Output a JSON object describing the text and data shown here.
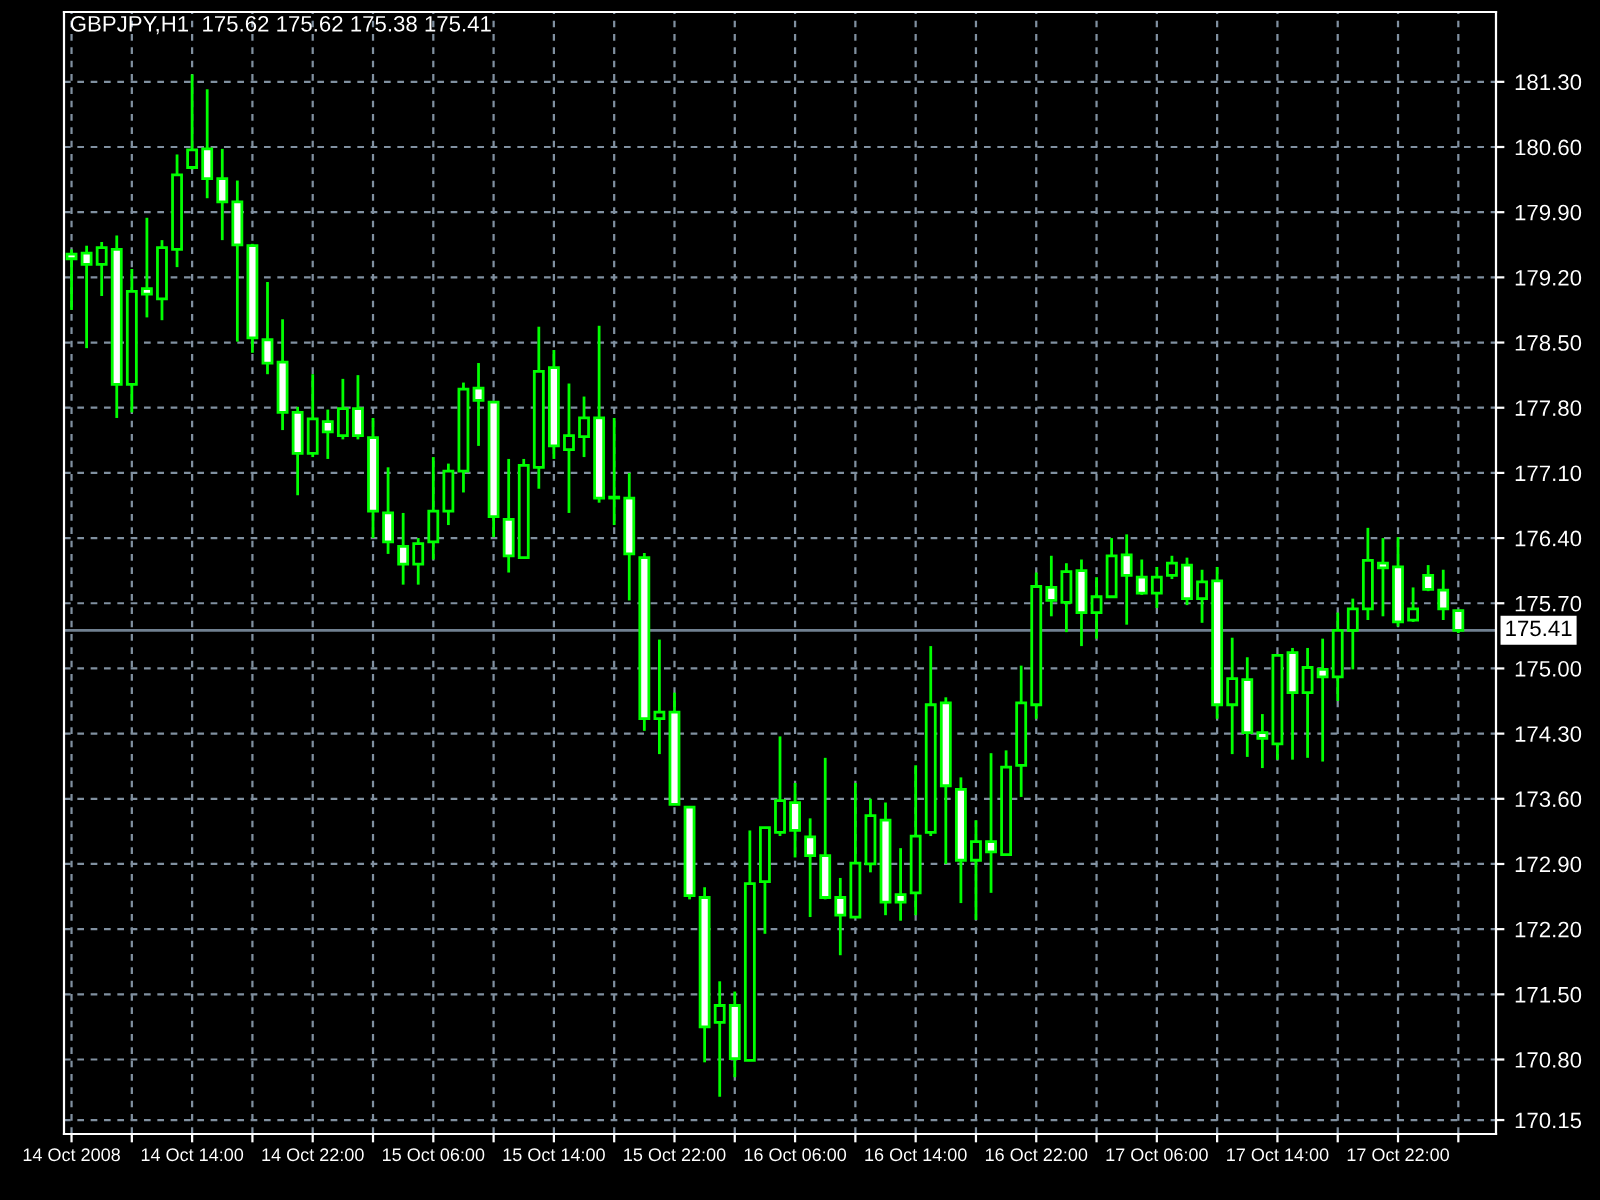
{
  "chart_data": {
    "type": "candlestick",
    "title": "GBPJPY,H1  175.62 175.62 175.38 175.41",
    "color": "#00ff00",
    "x": [
      "2008-10-14T06:00",
      "2008-10-14T07:00",
      "2008-10-14T08:00",
      "2008-10-14T09:00",
      "2008-10-14T10:00",
      "2008-10-14T11:00",
      "2008-10-14T12:00",
      "2008-10-14T13:00",
      "2008-10-14T14:00",
      "2008-10-14T15:00",
      "2008-10-14T16:00",
      "2008-10-14T17:00",
      "2008-10-14T18:00",
      "2008-10-14T19:00",
      "2008-10-14T20:00",
      "2008-10-14T21:00",
      "2008-10-14T22:00",
      "2008-10-14T23:00",
      "2008-10-15T00:00",
      "2008-10-15T01:00",
      "2008-10-15T02:00",
      "2008-10-15T03:00",
      "2008-10-15T04:00",
      "2008-10-15T05:00",
      "2008-10-15T06:00",
      "2008-10-15T07:00",
      "2008-10-15T08:00",
      "2008-10-15T09:00",
      "2008-10-15T10:00",
      "2008-10-15T11:00",
      "2008-10-15T12:00",
      "2008-10-15T13:00",
      "2008-10-15T14:00",
      "2008-10-15T15:00",
      "2008-10-15T16:00",
      "2008-10-15T17:00",
      "2008-10-15T18:00",
      "2008-10-15T19:00",
      "2008-10-15T20:00",
      "2008-10-15T21:00",
      "2008-10-15T22:00",
      "2008-10-15T23:00",
      "2008-10-16T00:00",
      "2008-10-16T01:00",
      "2008-10-16T02:00",
      "2008-10-16T03:00",
      "2008-10-16T04:00",
      "2008-10-16T05:00",
      "2008-10-16T06:00",
      "2008-10-16T07:00",
      "2008-10-16T08:00",
      "2008-10-16T09:00",
      "2008-10-16T10:00",
      "2008-10-16T11:00",
      "2008-10-16T12:00",
      "2008-10-16T13:00",
      "2008-10-16T14:00",
      "2008-10-16T15:00",
      "2008-10-16T16:00",
      "2008-10-16T17:00",
      "2008-10-16T18:00",
      "2008-10-16T19:00",
      "2008-10-16T20:00",
      "2008-10-16T21:00",
      "2008-10-16T22:00",
      "2008-10-16T23:00",
      "2008-10-17T00:00",
      "2008-10-17T01:00",
      "2008-10-17T02:00",
      "2008-10-17T03:00",
      "2008-10-17T04:00",
      "2008-10-17T05:00",
      "2008-10-17T06:00",
      "2008-10-17T07:00",
      "2008-10-17T08:00",
      "2008-10-17T09:00",
      "2008-10-17T10:00",
      "2008-10-17T11:00",
      "2008-10-17T12:00",
      "2008-10-17T13:00",
      "2008-10-17T14:00",
      "2008-10-17T15:00",
      "2008-10-17T16:00",
      "2008-10-17T17:00",
      "2008-10-17T18:00",
      "2008-10-17T19:00",
      "2008-10-17T20:00",
      "2008-10-17T21:00",
      "2008-10-17T22:00",
      "2008-10-17T23:00",
      "2008-10-18T00:00",
      "2008-10-18T01:00",
      "2008-10-18T02:00"
    ],
    "ohlc": [
      [
        179.45,
        179.5,
        178.85,
        179.4
      ],
      [
        179.46,
        179.54,
        178.44,
        179.34
      ],
      [
        179.34,
        179.58,
        179.0,
        179.52
      ],
      [
        179.5,
        179.65,
        177.69,
        178.05
      ],
      [
        178.05,
        179.29,
        177.75,
        179.05
      ],
      [
        179.08,
        179.84,
        178.77,
        179.02
      ],
      [
        178.97,
        179.6,
        178.74,
        179.52
      ],
      [
        179.5,
        180.52,
        179.31,
        180.3
      ],
      [
        180.38,
        181.38,
        180.36,
        180.57
      ],
      [
        180.58,
        181.22,
        180.05,
        180.26
      ],
      [
        180.26,
        180.58,
        179.6,
        180.01
      ],
      [
        180.01,
        180.24,
        178.51,
        179.55
      ],
      [
        179.54,
        179.56,
        178.39,
        178.55
      ],
      [
        178.53,
        179.15,
        178.16,
        178.28
      ],
      [
        178.29,
        178.75,
        177.56,
        177.75
      ],
      [
        177.75,
        177.81,
        176.86,
        177.31
      ],
      [
        177.31,
        178.16,
        177.27,
        177.68
      ],
      [
        177.65,
        177.78,
        177.25,
        177.54
      ],
      [
        177.5,
        178.11,
        177.46,
        177.79
      ],
      [
        177.79,
        178.15,
        177.46,
        177.5
      ],
      [
        177.48,
        177.69,
        176.4,
        176.69
      ],
      [
        176.67,
        177.16,
        176.23,
        176.36
      ],
      [
        176.31,
        176.67,
        175.9,
        176.12
      ],
      [
        176.12,
        176.4,
        175.9,
        176.34
      ],
      [
        176.36,
        177.27,
        176.17,
        176.69
      ],
      [
        176.69,
        177.2,
        176.54,
        177.12
      ],
      [
        177.12,
        178.07,
        176.89,
        178.0
      ],
      [
        178.01,
        178.28,
        177.39,
        177.88
      ],
      [
        177.86,
        177.86,
        176.41,
        176.63
      ],
      [
        176.6,
        177.25,
        176.03,
        176.21
      ],
      [
        176.19,
        177.25,
        176.19,
        177.18
      ],
      [
        177.16,
        178.67,
        176.93,
        178.19
      ],
      [
        178.23,
        178.42,
        177.25,
        177.39
      ],
      [
        177.35,
        178.06,
        176.67,
        177.5
      ],
      [
        177.49,
        177.92,
        177.27,
        177.69
      ],
      [
        177.69,
        178.68,
        176.78,
        176.83
      ],
      [
        176.84,
        177.69,
        176.54,
        176.83
      ],
      [
        176.83,
        177.1,
        175.73,
        176.23
      ],
      [
        176.19,
        176.24,
        174.33,
        174.46
      ],
      [
        174.46,
        175.31,
        174.08,
        174.53
      ],
      [
        174.53,
        174.74,
        173.54,
        173.54
      ],
      [
        173.51,
        173.51,
        172.52,
        172.56
      ],
      [
        172.54,
        172.65,
        170.77,
        171.15
      ],
      [
        171.2,
        171.64,
        170.4,
        171.38
      ],
      [
        171.38,
        171.53,
        170.61,
        170.81
      ],
      [
        170.79,
        173.26,
        170.79,
        172.69
      ],
      [
        172.71,
        173.29,
        172.15,
        173.29
      ],
      [
        173.24,
        174.27,
        173.2,
        173.58
      ],
      [
        173.56,
        173.77,
        172.97,
        173.26
      ],
      [
        173.19,
        173.39,
        172.33,
        172.99
      ],
      [
        172.99,
        174.04,
        172.52,
        172.54
      ],
      [
        172.54,
        172.75,
        171.92,
        172.35
      ],
      [
        172.33,
        173.77,
        172.33,
        172.91
      ],
      [
        172.9,
        173.6,
        172.81,
        173.42
      ],
      [
        173.37,
        173.56,
        172.35,
        172.49
      ],
      [
        172.57,
        173.07,
        172.29,
        172.49
      ],
      [
        172.59,
        173.96,
        172.35,
        173.2
      ],
      [
        173.24,
        175.24,
        173.2,
        174.61
      ],
      [
        174.63,
        174.69,
        172.9,
        173.74
      ],
      [
        173.7,
        173.83,
        172.48,
        172.94
      ],
      [
        172.94,
        173.37,
        172.3,
        173.14
      ],
      [
        173.14,
        174.09,
        172.59,
        173.03
      ],
      [
        173.0,
        174.12,
        173.0,
        173.94
      ],
      [
        173.96,
        175.03,
        173.62,
        174.63
      ],
      [
        174.61,
        176.03,
        174.46,
        175.88
      ],
      [
        175.87,
        176.21,
        175.56,
        175.73
      ],
      [
        175.71,
        176.13,
        175.39,
        176.04
      ],
      [
        176.05,
        176.17,
        175.24,
        175.6
      ],
      [
        175.6,
        175.98,
        175.32,
        175.77
      ],
      [
        175.77,
        176.4,
        175.77,
        176.21
      ],
      [
        176.22,
        176.44,
        175.47,
        176.0
      ],
      [
        175.98,
        176.17,
        175.79,
        175.81
      ],
      [
        175.81,
        176.09,
        175.65,
        175.98
      ],
      [
        176.0,
        176.21,
        175.96,
        176.13
      ],
      [
        176.11,
        176.19,
        175.68,
        175.75
      ],
      [
        175.75,
        176.06,
        175.49,
        175.93
      ],
      [
        175.94,
        176.09,
        174.46,
        174.61
      ],
      [
        174.61,
        175.33,
        174.08,
        174.89
      ],
      [
        174.88,
        175.12,
        174.05,
        174.31
      ],
      [
        174.31,
        174.51,
        173.93,
        174.25
      ],
      [
        174.19,
        175.14,
        174.02,
        175.14
      ],
      [
        175.17,
        175.22,
        174.02,
        174.74
      ],
      [
        174.74,
        175.22,
        174.04,
        175.01
      ],
      [
        174.99,
        175.32,
        174.0,
        174.91
      ],
      [
        174.91,
        175.6,
        174.65,
        175.41
      ],
      [
        175.41,
        175.75,
        174.99,
        175.64
      ],
      [
        175.64,
        176.51,
        175.52,
        176.16
      ],
      [
        176.13,
        176.4,
        175.56,
        176.08
      ],
      [
        176.09,
        176.41,
        175.45,
        175.5
      ],
      [
        175.52,
        175.87,
        175.5,
        175.64
      ],
      [
        176.0,
        176.11,
        175.83,
        175.85
      ],
      [
        175.84,
        176.06,
        175.52,
        175.64
      ],
      [
        175.62,
        175.62,
        175.38,
        175.41
      ]
    ],
    "colors": [
      "#ffffff",
      "#ffffff",
      "#000000",
      "#ffffff",
      "#000000",
      "#ffffff",
      "#000000",
      "#000000",
      "#000000",
      "#ffffff",
      "#ffffff",
      "#ffffff",
      "#ffffff",
      "#ffffff",
      "#ffffff",
      "#ffffff",
      "#000000",
      "#ffffff",
      "#000000",
      "#ffffff",
      "#ffffff",
      "#ffffff",
      "#ffffff",
      "#000000",
      "#000000",
      "#000000",
      "#000000",
      "#ffffff",
      "#ffffff",
      "#ffffff",
      "#000000",
      "#000000",
      "#ffffff",
      "#000000",
      "#000000",
      "#ffffff",
      "#ffffff",
      "#ffffff",
      "#ffffff",
      "#000000",
      "#ffffff",
      "#ffffff",
      "#ffffff",
      "#000000",
      "#ffffff",
      "#000000",
      "#000000",
      "#000000",
      "#ffffff",
      "#ffffff",
      "#ffffff",
      "#ffffff",
      "#000000",
      "#000000",
      "#ffffff",
      "#ffffff",
      "#000000",
      "#000000",
      "#ffffff",
      "#ffffff",
      "#000000",
      "#ffffff",
      "#000000",
      "#000000",
      "#000000",
      "#ffffff",
      "#000000",
      "#ffffff",
      "#000000",
      "#000000",
      "#ffffff",
      "#ffffff",
      "#000000",
      "#000000",
      "#ffffff",
      "#000000",
      "#ffffff",
      "#000000",
      "#ffffff",
      "#ffffff",
      "#000000",
      "#ffffff",
      "#000000",
      "#ffffff",
      "#000000",
      "#000000",
      "#000000",
      "#ffffff",
      "#ffffff",
      "#000000",
      "#ffffff",
      "#ffffff",
      "#ffffff"
    ],
    "xlim": [
      "2008-10-14T05:30",
      "2008-10-18T04:30"
    ],
    "xticks": [
      {
        "value": "2008-10-14T06:00",
        "label": "14 Oct 2008"
      },
      {
        "value": "2008-10-14T10:00",
        "label": null
      },
      {
        "value": "2008-10-14T14:00",
        "label": "14 Oct 14:00"
      },
      {
        "value": "2008-10-14T18:00",
        "label": null
      },
      {
        "value": "2008-10-14T22:00",
        "label": "14 Oct 22:00"
      },
      {
        "value": "2008-10-15T02:00",
        "label": null
      },
      {
        "value": "2008-10-15T06:00",
        "label": "15 Oct 06:00"
      },
      {
        "value": "2008-10-15T10:00",
        "label": null
      },
      {
        "value": "2008-10-15T14:00",
        "label": "15 Oct 14:00"
      },
      {
        "value": "2008-10-15T18:00",
        "label": null
      },
      {
        "value": "2008-10-15T22:00",
        "label": "15 Oct 22:00"
      },
      {
        "value": "2008-10-16T02:00",
        "label": null
      },
      {
        "value": "2008-10-16T06:00",
        "label": "16 Oct 06:00"
      },
      {
        "value": "2008-10-16T10:00",
        "label": null
      },
      {
        "value": "2008-10-16T14:00",
        "label": "16 Oct 14:00"
      },
      {
        "value": "2008-10-16T18:00",
        "label": null
      },
      {
        "value": "2008-10-16T22:00",
        "label": "16 Oct 22:00"
      },
      {
        "value": "2008-10-17T02:00",
        "label": null
      },
      {
        "value": "2008-10-17T06:00",
        "label": "17 Oct 06:00"
      },
      {
        "value": "2008-10-17T10:00",
        "label": null
      },
      {
        "value": "2008-10-17T14:00",
        "label": "17 Oct 14:00"
      },
      {
        "value": "2008-10-17T18:00",
        "label": null
      },
      {
        "value": "2008-10-17T22:00",
        "label": "17 Oct 22:00"
      },
      {
        "value": "2008-10-18T02:00",
        "label": null
      }
    ],
    "ylim": [
      170.0,
      182.05
    ],
    "yticks": [
      {
        "value": 170.15,
        "label": "170.15"
      },
      {
        "value": 170.8,
        "label": "170.80"
      },
      {
        "value": 171.5,
        "label": "171.50"
      },
      {
        "value": 172.2,
        "label": "172.20"
      },
      {
        "value": 172.9,
        "label": "172.90"
      },
      {
        "value": 173.6,
        "label": "173.60"
      },
      {
        "value": 174.3,
        "label": "174.30"
      },
      {
        "value": 175.0,
        "label": "175.00"
      },
      {
        "value": 175.7,
        "label": "175.70"
      },
      {
        "value": 176.4,
        "label": "176.40"
      },
      {
        "value": 177.1,
        "label": "177.10"
      },
      {
        "value": 177.8,
        "label": "177.80"
      },
      {
        "value": 178.5,
        "label": "178.50"
      },
      {
        "value": 179.2,
        "label": "179.20"
      },
      {
        "value": 179.9,
        "label": "179.90"
      },
      {
        "value": 180.6,
        "label": "180.60"
      },
      {
        "value": 181.3,
        "label": "181.30"
      }
    ],
    "grid": true,
    "ref_lines": [
      {
        "axis": "y",
        "value": 175.41,
        "label": "175.41",
        "color": "#708090"
      }
    ]
  }
}
